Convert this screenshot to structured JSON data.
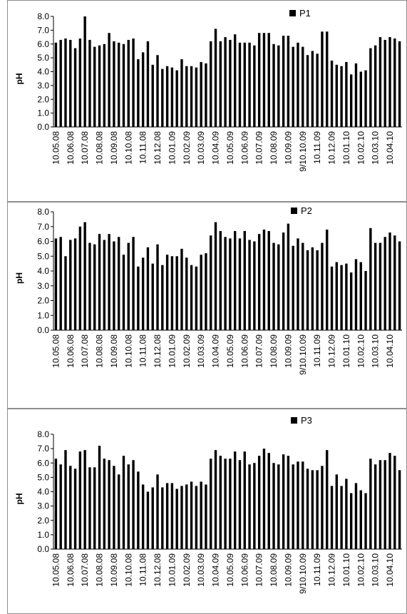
{
  "chart_data": [
    {
      "type": "bar",
      "legend": "P1",
      "ylabel": "pH",
      "xlabel": "",
      "ylim": [
        0,
        8
      ],
      "yticks": [
        "0.0",
        "1.0",
        "2.0",
        "3.0",
        "4.0",
        "5.0",
        "6.0",
        "7.0",
        "8.0"
      ],
      "x_tick_labels": [
        "10.05.08",
        "10.06.08",
        "10.07.08",
        "10.08.08",
        "10.09.08",
        "10.10.08",
        "10.11.08",
        "10.12.08",
        "10.01.09",
        "10.02.09",
        "10.03.09",
        "10.04.09",
        "10.05.09",
        "10.06.09",
        "10.07.09",
        "10.08.09",
        "10.09.09",
        "9/10.10.09",
        "10.11.09",
        "10.12.09",
        "10.01.10",
        "10.02.10",
        "10.03.10",
        "10.04.10"
      ],
      "series": [
        {
          "name": "P1",
          "values": [
            6.1,
            6.3,
            6.4,
            6.3,
            5.7,
            6.4,
            8.0,
            6.3,
            5.8,
            5.9,
            6.0,
            6.8,
            6.2,
            6.1,
            6.0,
            6.3,
            6.4,
            4.9,
            5.4,
            6.2,
            4.5,
            5.2,
            4.2,
            4.4,
            4.3,
            4.1,
            4.9,
            4.4,
            4.4,
            4.3,
            4.7,
            4.6,
            6.2,
            7.1,
            6.2,
            6.5,
            6.3,
            6.7,
            6.1,
            6.1,
            6.1,
            5.9,
            6.8,
            6.8,
            6.8,
            6.0,
            5.9,
            6.6,
            6.6,
            5.8,
            6.1,
            5.8,
            5.2,
            5.5,
            5.3,
            6.9,
            6.9,
            4.8,
            4.5,
            4.4,
            4.7,
            3.8,
            4.6,
            4.0,
            4.1,
            5.7,
            5.9,
            6.5,
            6.3,
            6.5,
            6.4,
            6.2
          ]
        }
      ]
    },
    {
      "type": "bar",
      "legend": "P2",
      "ylabel": "pH",
      "xlabel": "",
      "ylim": [
        0,
        8
      ],
      "yticks": [
        "0.0",
        "1.0",
        "2.0",
        "3.0",
        "4.0",
        "5.0",
        "6.0",
        "7.0",
        "8.0"
      ],
      "x_tick_labels": [
        "10.05.08",
        "10.06.08",
        "10.07.08",
        "10.08.08",
        "10.09.08",
        "10.10.08",
        "10.11.08",
        "10.12.08",
        "10.01.09",
        "10.02.09",
        "10.03.09",
        "10.04.09",
        "10.05.09",
        "10.06.09",
        "10.07.09",
        "10.08.09",
        "10.09.09",
        "9/10.10.09",
        "10.11.09",
        "10.12.09",
        "10.01.10",
        "10.02.10",
        "10.03.10",
        "10.04.10"
      ],
      "series": [
        {
          "name": "P2",
          "values": [
            6.2,
            6.3,
            5.0,
            6.1,
            6.2,
            7.0,
            7.3,
            5.9,
            5.8,
            6.5,
            6.1,
            6.5,
            6.0,
            6.3,
            5.1,
            5.9,
            6.3,
            4.3,
            4.9,
            5.6,
            4.5,
            5.8,
            4.4,
            5.1,
            5.0,
            5.0,
            5.5,
            4.9,
            4.4,
            4.3,
            5.1,
            5.2,
            6.4,
            7.3,
            6.7,
            6.3,
            6.2,
            6.7,
            6.2,
            6.7,
            6.1,
            6.0,
            6.5,
            6.8,
            6.7,
            5.9,
            5.8,
            6.6,
            7.2,
            5.7,
            6.2,
            5.9,
            5.4,
            5.6,
            5.4,
            5.9,
            6.8,
            4.3,
            4.6,
            4.4,
            4.5,
            3.9,
            4.8,
            4.6,
            4.0,
            6.9,
            5.9,
            5.9,
            6.3,
            6.6,
            6.4,
            6.0
          ]
        }
      ]
    },
    {
      "type": "bar",
      "legend": "P3",
      "ylabel": "pH",
      "xlabel": "",
      "ylim": [
        0,
        8
      ],
      "yticks": [
        "0.0",
        "1.0",
        "2.0",
        "3.0",
        "4.0",
        "5.0",
        "6.0",
        "7.0",
        "8.0"
      ],
      "x_tick_labels": [
        "10.05.08",
        "10.06.08",
        "10.07.08",
        "10.08.08",
        "10.09.08",
        "10.10.08",
        "10.11.08",
        "10.12.08",
        "10.01.09",
        "10.02.09",
        "10.03.09",
        "10.04.09",
        "10.05.09",
        "10.06.09",
        "10.07.09",
        "10.08.09",
        "10.09.09",
        "9/10.10.09",
        "10.11.09",
        "10.12.09",
        "10.01.10",
        "10.02.10",
        "10.03.10",
        "10.04.10"
      ],
      "series": [
        {
          "name": "P3",
          "values": [
            6.3,
            5.9,
            6.9,
            5.8,
            5.6,
            6.8,
            6.9,
            5.7,
            5.7,
            7.2,
            6.3,
            6.2,
            5.8,
            5.2,
            6.5,
            5.9,
            6.2,
            5.4,
            4.5,
            4.0,
            4.3,
            5.2,
            4.3,
            4.6,
            4.6,
            4.2,
            4.4,
            4.5,
            4.7,
            4.4,
            4.7,
            4.5,
            6.3,
            6.9,
            6.5,
            6.3,
            6.3,
            6.8,
            6.2,
            6.8,
            5.9,
            6.0,
            6.5,
            7.0,
            6.7,
            6.0,
            5.9,
            6.6,
            6.5,
            5.9,
            6.1,
            6.1,
            5.6,
            5.5,
            5.5,
            5.8,
            6.9,
            4.4,
            5.2,
            4.4,
            4.9,
            3.9,
            4.6,
            4.1,
            3.9,
            6.3,
            5.9,
            6.2,
            6.2,
            6.7,
            6.5,
            5.5
          ]
        }
      ]
    }
  ]
}
